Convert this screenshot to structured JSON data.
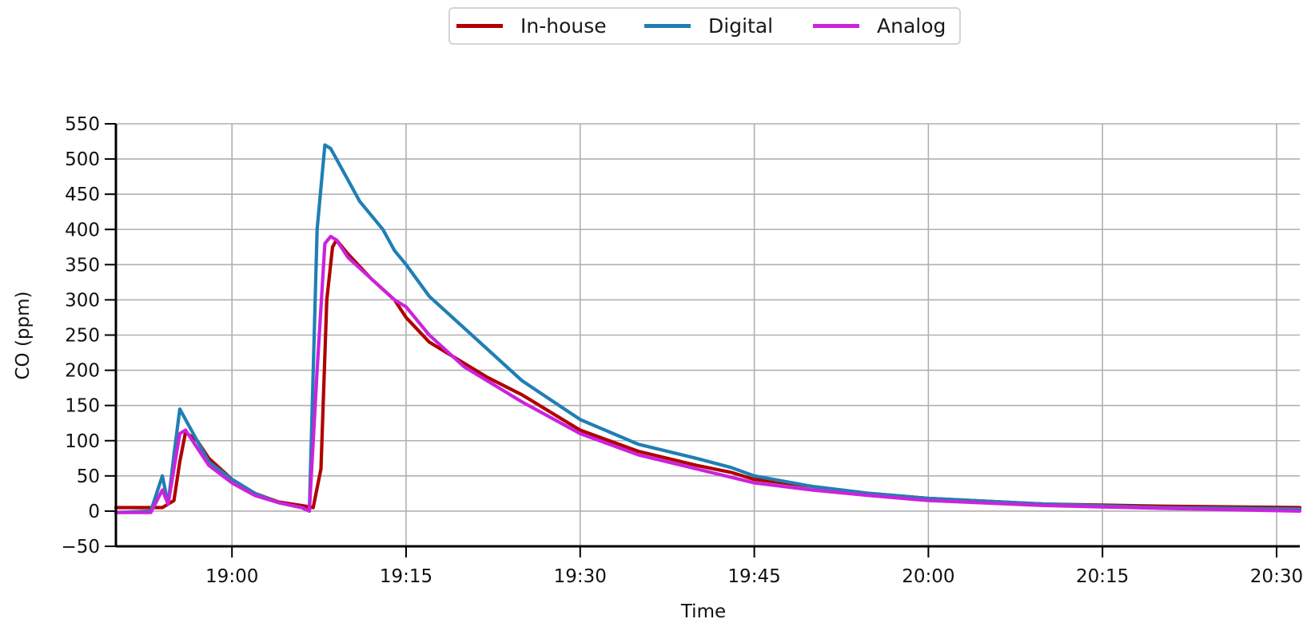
{
  "chart_data": {
    "type": "line",
    "title": "",
    "xlabel": "Time",
    "ylabel": "CO (ppm)",
    "ylim": [
      -50,
      550
    ],
    "yticks": [
      -50,
      0,
      50,
      100,
      150,
      200,
      250,
      300,
      350,
      400,
      450,
      500,
      550
    ],
    "ytick_labels": [
      "−50",
      "0",
      "50",
      "100",
      "150",
      "200",
      "250",
      "300",
      "350",
      "400",
      "450",
      "500",
      "550"
    ],
    "xlim": [
      "18:50",
      "20:32"
    ],
    "xticks": [
      "19:00",
      "19:15",
      "19:30",
      "19:45",
      "20:00",
      "20:15",
      "20:30"
    ],
    "grid": true,
    "legend_position": "top-center",
    "series": [
      {
        "name": "In-house",
        "color": "#b00000",
        "x": [
          "18:50",
          "18:54",
          "18:55",
          "18:55:30",
          "18:56",
          "18:57",
          "18:58",
          "19:00",
          "19:02",
          "19:04",
          "19:06",
          "19:07",
          "19:07:40",
          "19:08:10",
          "19:08:40",
          "19:09",
          "19:10",
          "19:12",
          "19:14",
          "19:15",
          "19:17",
          "19:20",
          "19:22",
          "19:25",
          "19:28",
          "19:30",
          "19:35",
          "19:40",
          "19:43",
          "19:45",
          "19:50",
          "19:55",
          "20:00",
          "20:10",
          "20:20",
          "20:32"
        ],
        "values": [
          5,
          5,
          15,
          70,
          112,
          100,
          75,
          45,
          25,
          13,
          8,
          5,
          60,
          300,
          375,
          385,
          365,
          330,
          300,
          275,
          240,
          210,
          190,
          165,
          135,
          115,
          85,
          65,
          55,
          45,
          35,
          25,
          18,
          10,
          7,
          5
        ]
      },
      {
        "name": "Digital",
        "color": "#1f7fb5",
        "x": [
          "18:50",
          "18:53",
          "18:54",
          "18:54:30",
          "18:55",
          "18:55:30",
          "18:56",
          "18:57",
          "18:58",
          "19:00",
          "19:02",
          "19:04",
          "19:06",
          "19:06:40",
          "19:07:20",
          "19:08",
          "19:08:30",
          "19:09",
          "19:10",
          "19:11",
          "19:12",
          "19:13",
          "19:14",
          "19:15",
          "19:17",
          "19:20",
          "19:25",
          "19:30",
          "19:35",
          "19:40",
          "19:43",
          "19:45",
          "19:50",
          "19:55",
          "20:00",
          "20:10",
          "20:20",
          "20:32"
        ],
        "values": [
          -2,
          0,
          50,
          10,
          80,
          145,
          130,
          100,
          70,
          45,
          25,
          12,
          5,
          0,
          400,
          520,
          515,
          500,
          470,
          440,
          420,
          400,
          370,
          350,
          305,
          260,
          185,
          130,
          95,
          75,
          62,
          50,
          35,
          25,
          18,
          10,
          5,
          3
        ]
      },
      {
        "name": "Analog",
        "color": "#cc22dd",
        "x": [
          "18:50",
          "18:53",
          "18:54",
          "18:54:30",
          "18:55",
          "18:55:30",
          "18:56",
          "18:57",
          "18:58",
          "19:00",
          "19:02",
          "19:04",
          "19:06",
          "19:06:40",
          "19:07:20",
          "19:08",
          "19:08:30",
          "19:09",
          "19:10",
          "19:12",
          "19:14",
          "19:15",
          "19:17",
          "19:20",
          "19:25",
          "19:30",
          "19:35",
          "19:40",
          "19:45",
          "19:50",
          "19:55",
          "20:00",
          "20:10",
          "20:20",
          "20:32"
        ],
        "values": [
          -2,
          -2,
          30,
          10,
          60,
          110,
          115,
          90,
          65,
          40,
          22,
          12,
          5,
          0,
          200,
          380,
          390,
          385,
          360,
          330,
          300,
          290,
          250,
          205,
          155,
          110,
          80,
          60,
          40,
          30,
          22,
          15,
          8,
          4,
          0
        ]
      }
    ]
  }
}
